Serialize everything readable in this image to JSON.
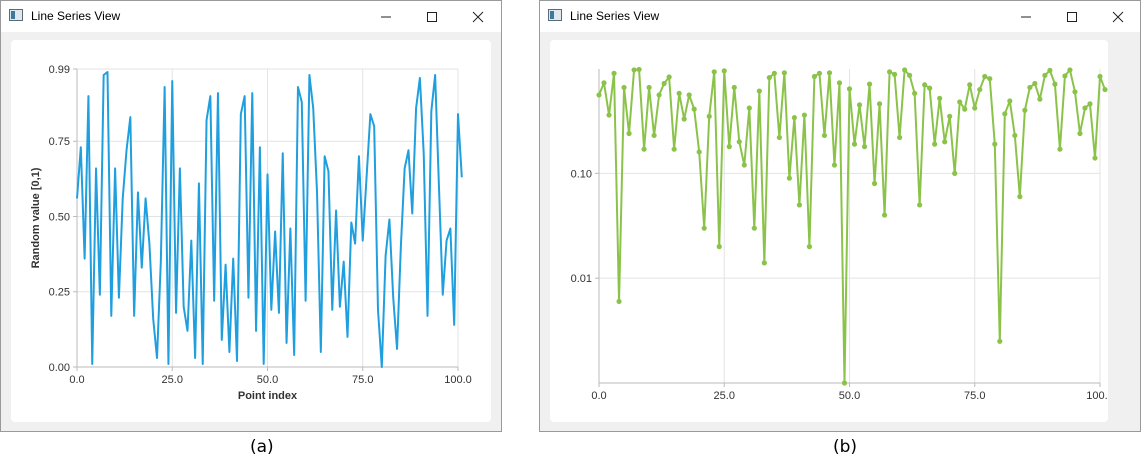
{
  "windows": [
    {
      "title": "Line Series View",
      "caption": "(a)"
    },
    {
      "title": "Line Series View",
      "caption": "(b)"
    }
  ],
  "icons": {
    "minimize": "minimize-icon",
    "maximize": "maximize-icon",
    "close": "close-icon",
    "app": "app-window-icon"
  },
  "chart_data": [
    {
      "type": "line",
      "title": "",
      "xlabel": "Point index",
      "ylabel": "Random value [0,1)",
      "xlim": [
        0,
        100
      ],
      "ylim": [
        0,
        0.99
      ],
      "xticks": [
        "0.0",
        "25.0",
        "50.0",
        "75.0",
        "100.0"
      ],
      "yticks": [
        "0.00",
        "0.25",
        "0.50",
        "0.75",
        "0.99"
      ],
      "grid": true,
      "color": "#209fdf",
      "series": [
        {
          "values": [
            0.56,
            0.73,
            0.36,
            0.9,
            0.01,
            0.66,
            0.24,
            0.97,
            0.98,
            0.17,
            0.66,
            0.23,
            0.56,
            0.72,
            0.83,
            0.17,
            0.58,
            0.33,
            0.56,
            0.41,
            0.16,
            0.03,
            0.35,
            0.93,
            0.01,
            0.95,
            0.18,
            0.66,
            0.2,
            0.12,
            0.42,
            0.03,
            0.61,
            0.01,
            0.82,
            0.9,
            0.22,
            0.91,
            0.09,
            0.34,
            0.05,
            0.36,
            0.02,
            0.84,
            0.9,
            0.23,
            0.91,
            0.12,
            0.73,
            0.01,
            0.64,
            0.19,
            0.45,
            0.18,
            0.71,
            0.08,
            0.46,
            0.04,
            0.93,
            0.88,
            0.22,
            0.97,
            0.86,
            0.58,
            0.05,
            0.7,
            0.65,
            0.19,
            0.52,
            0.2,
            0.35,
            0.1,
            0.48,
            0.41,
            0.7,
            0.42,
            0.63,
            0.84,
            0.8,
            0.19,
            0.0,
            0.37,
            0.49,
            0.23,
            0.06,
            0.4,
            0.66,
            0.72,
            0.51,
            0.86,
            0.96,
            0.71,
            0.17,
            0.85,
            0.97,
            0.6,
            0.24,
            0.42,
            0.46,
            0.14,
            0.84,
            0.63
          ]
        }
      ]
    },
    {
      "type": "line",
      "title": "",
      "xlabel": "",
      "ylabel": "",
      "xscale": "linear",
      "yscale": "log",
      "xlim": [
        0,
        100
      ],
      "ylim": [
        0.001,
        0.99
      ],
      "xticks": [
        "0.0",
        "25.0",
        "50.0",
        "75.0",
        "100.0"
      ],
      "yticks": [
        "0.10",
        "0.01"
      ],
      "grid": true,
      "color": "#8bc34a",
      "markers": true,
      "series": [
        {
          "values": [
            0.56,
            0.73,
            0.36,
            0.9,
            0.006,
            0.66,
            0.24,
            0.97,
            0.98,
            0.17,
            0.66,
            0.23,
            0.56,
            0.72,
            0.83,
            0.17,
            0.58,
            0.33,
            0.56,
            0.41,
            0.16,
            0.03,
            0.35,
            0.93,
            0.02,
            0.95,
            0.18,
            0.66,
            0.2,
            0.12,
            0.42,
            0.03,
            0.61,
            0.014,
            0.82,
            0.9,
            0.22,
            0.91,
            0.09,
            0.34,
            0.05,
            0.36,
            0.02,
            0.84,
            0.9,
            0.23,
            0.91,
            0.12,
            0.73,
            0.001,
            0.64,
            0.19,
            0.45,
            0.18,
            0.71,
            0.08,
            0.46,
            0.04,
            0.93,
            0.88,
            0.22,
            0.97,
            0.86,
            0.58,
            0.05,
            0.7,
            0.65,
            0.19,
            0.52,
            0.2,
            0.35,
            0.1,
            0.48,
            0.41,
            0.7,
            0.42,
            0.63,
            0.84,
            0.8,
            0.19,
            0.0025,
            0.37,
            0.49,
            0.23,
            0.06,
            0.4,
            0.66,
            0.72,
            0.51,
            0.86,
            0.96,
            0.71,
            0.17,
            0.85,
            0.97,
            0.6,
            0.24,
            0.42,
            0.46,
            0.14,
            0.84,
            0.63
          ]
        }
      ]
    }
  ]
}
